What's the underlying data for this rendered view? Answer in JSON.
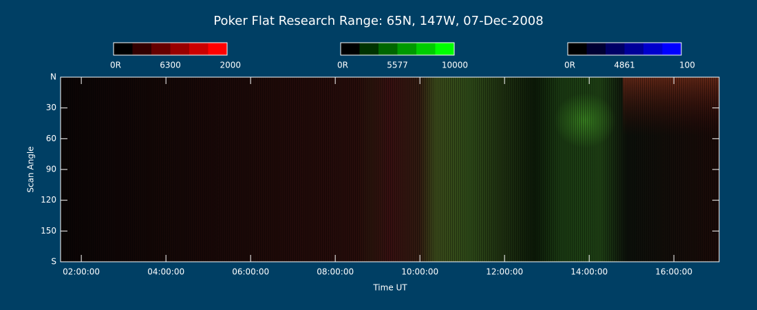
{
  "chart_data": {
    "type": "keogram",
    "title": "Poker Flat Research Range: 65N, 147W, 07-Dec-2008",
    "x_label": "Time UT",
    "y_label": "Scan Angle",
    "xlim": [
      1.51,
      17.07
    ],
    "ylim": [
      0,
      180
    ],
    "y_inverted": true,
    "xticks": [
      {
        "value": 2,
        "label": "02:00:00"
      },
      {
        "value": 4,
        "label": "04:00:00"
      },
      {
        "value": 6,
        "label": "06:00:00"
      },
      {
        "value": 8,
        "label": "08:00:00"
      },
      {
        "value": 10,
        "label": "10:00:00"
      },
      {
        "value": 12,
        "label": "12:00:00"
      },
      {
        "value": 14,
        "label": "14:00:00"
      },
      {
        "value": 16,
        "label": "16:00:00"
      }
    ],
    "yticks": [
      {
        "value": 0,
        "label": "N"
      },
      30,
      60,
      90,
      120,
      150,
      {
        "value": 180,
        "label": "S"
      }
    ],
    "colorbars": [
      {
        "min": {
          "value": 0,
          "label": "0R"
        },
        "wavelength": 6300,
        "max": 2000,
        "colors": [
          "#000000",
          "#330000",
          "#660000",
          "#990000",
          "#cc0000",
          "#ff0000"
        ]
      },
      {
        "min": {
          "value": 0,
          "label": "0R"
        },
        "wavelength": 5577,
        "max": 10000,
        "colors": [
          "#000000",
          "#003300",
          "#006600",
          "#009900",
          "#00cc00",
          "#00ff00"
        ]
      },
      {
        "min": {
          "value": 0,
          "label": "0R"
        },
        "wavelength": 4861,
        "max": 100,
        "colors": [
          "#000000",
          "#000033",
          "#000066",
          "#000099",
          "#0000cc",
          "#0000ff"
        ]
      }
    ]
  }
}
